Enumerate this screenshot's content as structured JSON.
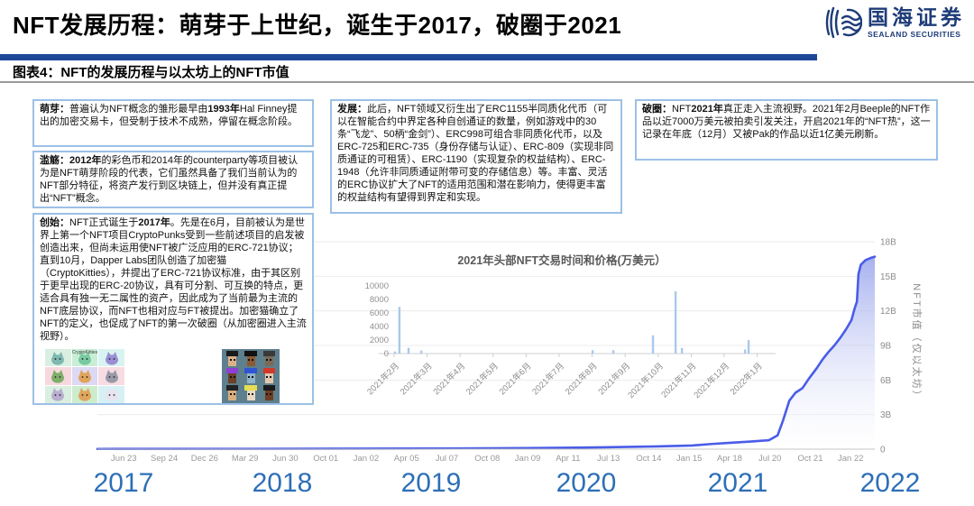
{
  "header": {
    "title": "NFT发展历程：萌芽于上世纪，诞生于2017，破圈于2021",
    "logo": {
      "name_cn": "国海证券",
      "name_en": "SEALAND SECURITIES",
      "color": "#1e3c78"
    }
  },
  "caption": "图表4：NFT的发展历程与以太坊上的NFT市值",
  "accent_colors": {
    "title_rule": "#1d4796",
    "box_border": "#9cc0e7",
    "year_label": "#2d6fb7"
  },
  "boxes": [
    {
      "id": "mengya",
      "term": "萌芽：",
      "parts": [
        {
          "t": "普遍认为NFT概念的雏形最早由",
          "b": false
        },
        {
          "t": "1993年",
          "b": true
        },
        {
          "t": "Hal Finney提出的加密交易卡，但受制于技术不成熟，停留在概念阶段。",
          "b": false
        }
      ]
    },
    {
      "id": "lanshang",
      "term": "滥觞：",
      "parts": [
        {
          "t": "2012年",
          "b": true
        },
        {
          "t": "的彩色币和2014年的counterparty等项目被认为是NFT萌芽阶段的代表，它们虽然具备了我们当前认为的NFT部分特征，将资产发行到区块链上，但并没有真正提出“NFT”概念。",
          "b": false
        }
      ]
    },
    {
      "id": "chuangshi",
      "term": "创始：",
      "parts": [
        {
          "t": "NFT正式诞生于",
          "b": false
        },
        {
          "t": "2017年",
          "b": true
        },
        {
          "t": "。先是在6月，目前被认为是世界上第一个NFT项目CryptoPunks受到一些前述项目的启发被创造出来，但尚未运用使NFT被广泛应用的ERC-721协议；直到10月，Dapper Labs团队创造了加密猫（CryptoKitties），并提出了ERC-721协议标准，由于其区别于更早出现的ERC-20协议，具有可分割、可互换的特点，更适合具有独一无二属性的资产，因此成为了当前最为主流的NFT底层协议，而NFT也相对应与FT被提出。加密猫确立了NFT的定义，也促成了NFT的第一次破圈（从加密圈进入主流视野）。",
          "b": false
        }
      ]
    },
    {
      "id": "fazhan",
      "term": "发展：",
      "parts": [
        {
          "t": "此后，NFT领域又衍生出了ERC1155半同质化代币（可以在智能合约中界定各种自创通证的数量，例如游戏中的30条“飞龙”、50柄“金剑”）、ERC998可组合非同质化代币，以及ERC-725和ERC-735（身份存储与认证）、ERC-809（实现非同质通证的可租赁）、ERC-1190（实现复杂的权益结构）、ERC-1948（允许非同质通证附带可变的存储信息）等。丰富、灵活的ERC协议扩大了NFT的适用范围和潜在影响力，使得更丰富的权益结构有望得到界定和实现。",
          "b": false
        }
      ]
    },
    {
      "id": "poquan",
      "term": "破圈：",
      "parts": [
        {
          "t": "NFT",
          "b": false
        },
        {
          "t": "2021年",
          "b": true
        },
        {
          "t": "真正走入主流视野。2021年2月Beeple的NFT作品以近7000万美元被拍卖引发关注，开启2021年的“NFT热”，这一记录在年底（12月）又被Pak的作品以近1亿美元刷新。",
          "b": false
        }
      ]
    }
  ],
  "images": {
    "cryptokitties_label": "CryptoKitties",
    "kitty_tiles": [
      {
        "bg": "#d9efe2",
        "cat": "#7fb8b0"
      },
      {
        "bg": "#c9eed6",
        "cat": "#79c9a2"
      },
      {
        "bg": "#d8f4f2",
        "cat": "#9b8fd4"
      },
      {
        "bg": "#f6d9de",
        "cat": "#7fae6a"
      },
      {
        "bg": "#ddd8f3",
        "cat": "#e0a45c"
      },
      {
        "bg": "#f8dce3",
        "cat": "#9a9aa8"
      },
      {
        "bg": "#d9efdf",
        "cat": "#b9aed0"
      },
      {
        "bg": "#cdeccc",
        "cat": "#e0a45c"
      },
      {
        "bg": "#d6f0f4",
        "cat": "#e8e4ee"
      }
    ],
    "punks_bg": "#5e7f8d",
    "punks": [
      {
        "skin": "#dbb18a",
        "hair": "#1a1a1a"
      },
      {
        "skin": "#8a5a33",
        "hair": "#111111"
      },
      {
        "skin": "#7d6a55",
        "hair": "#3a3a3a"
      },
      {
        "skin": "#6a4226",
        "hair": "#8d3fd6"
      },
      {
        "skin": "#8fb3c9",
        "hair": "#2f55d4"
      },
      {
        "skin": "#e3c7ad",
        "hair": "#d03a2a"
      },
      {
        "skin": "#d8ad7f",
        "hair": "#222222"
      },
      {
        "skin": "#ead9c5",
        "hair": "#e6df55"
      },
      {
        "skin": "#6e3d22",
        "hair": "#1a1a1a"
      }
    ]
  },
  "chart_data": [
    {
      "type": "bar",
      "title": "2021年头部NFT交易时间和价格(万美元）",
      "x_labels": [
        "2021年2月",
        "2021年3月",
        "2021年4月",
        "2021年5月",
        "2021年6月",
        "2021年7月",
        "2021年8月",
        "2021年9月",
        "2021年10月",
        "2021年11月",
        "2021年12月",
        "2022年1月"
      ],
      "yticks": [
        0,
        2000,
        4000,
        6000,
        8000,
        10000
      ],
      "ylim": [
        0,
        10000
      ],
      "bar_color": "#a9c9ec",
      "bars": [
        {
          "x": 0.041,
          "v": 300
        },
        {
          "x": 0.052,
          "v": 6900
        },
        {
          "x": 0.075,
          "v": 850
        },
        {
          "x": 0.107,
          "v": 450
        },
        {
          "x": 0.539,
          "v": 500
        },
        {
          "x": 0.591,
          "v": 500
        },
        {
          "x": 0.691,
          "v": 2700
        },
        {
          "x": 0.748,
          "v": 9200
        },
        {
          "x": 0.764,
          "v": 830
        },
        {
          "x": 0.923,
          "v": 600
        },
        {
          "x": 0.932,
          "v": 2000
        }
      ]
    },
    {
      "type": "area",
      "ylabel": "NFT市值（仅以太坊）",
      "yticks": [
        "0",
        "3B",
        "6B",
        "9B",
        "12B",
        "15B",
        "18B"
      ],
      "ylim_billions": [
        0,
        18
      ],
      "x_ticks": [
        "Jun 23",
        "Sep 24",
        "Dec 26",
        "Mar 29",
        "Jun 30",
        "Oct 01",
        "Jan 02",
        "Apr 05",
        "Jul 07",
        "Oct 08",
        "Jan 09",
        "Apr 11",
        "Jul 13",
        "Oct 14",
        "Jan 15",
        "Apr 18",
        "Jul 20",
        "Oct 21",
        "Jan 22"
      ],
      "years": [
        "2017",
        "2018",
        "2019",
        "2020",
        "2021",
        "2022"
      ],
      "line_color": "#4a5ce8",
      "points": [
        [
          0,
          0.02
        ],
        [
          0.2,
          0.03
        ],
        [
          0.4,
          0.05
        ],
        [
          0.55,
          0.09
        ],
        [
          0.65,
          0.16
        ],
        [
          0.72,
          0.24
        ],
        [
          0.765,
          0.32
        ],
        [
          0.79,
          0.45
        ],
        [
          0.814,
          0.55
        ],
        [
          0.84,
          0.66
        ],
        [
          0.864,
          0.78
        ],
        [
          0.875,
          1.2
        ],
        [
          0.882,
          2.5
        ],
        [
          0.89,
          4.2
        ],
        [
          0.898,
          4.9
        ],
        [
          0.907,
          5.3
        ],
        [
          0.915,
          6.1
        ],
        [
          0.925,
          7.0
        ],
        [
          0.933,
          7.8
        ],
        [
          0.94,
          8.4
        ],
        [
          0.948,
          9.0
        ],
        [
          0.956,
          9.7
        ],
        [
          0.963,
          10.4
        ],
        [
          0.97,
          11.2
        ],
        [
          0.974,
          12.2
        ],
        [
          0.977,
          12.8
        ],
        [
          0.979,
          15.2
        ],
        [
          0.982,
          16.0
        ],
        [
          0.988,
          16.4
        ],
        [
          0.995,
          16.6
        ],
        [
          1,
          16.7
        ]
      ]
    }
  ]
}
